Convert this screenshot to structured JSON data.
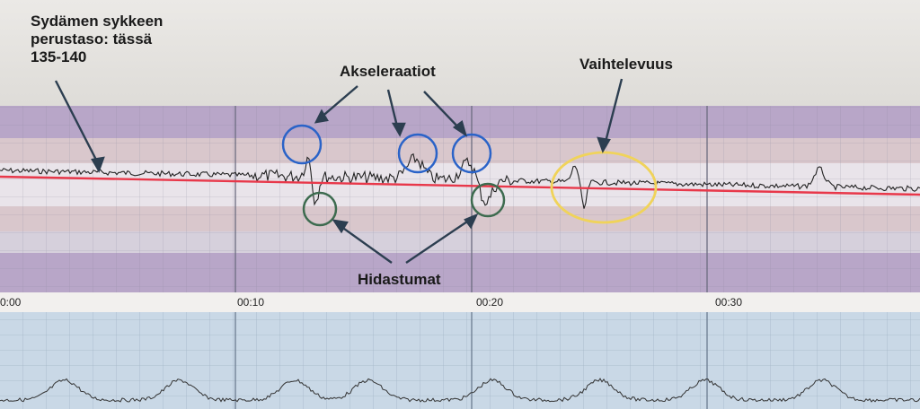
{
  "annotations": {
    "baseline": [
      "Sydämen sykkeen",
      "perustaso: tässä",
      "135-140"
    ],
    "accelerations": "Akseleraatiot",
    "variability": "Vaihtelevuus",
    "decelerations": "Hidastumat"
  },
  "time_axis": [
    "0:00",
    "00:10",
    "00:20",
    "00:30"
  ],
  "colors": {
    "baseline_line": "#e8384a",
    "acceleration_circle": "#2a63c8",
    "deceleration_circle": "#3d6b4f",
    "variability_ellipse": "#f0d35a",
    "trace": "#222222"
  }
}
